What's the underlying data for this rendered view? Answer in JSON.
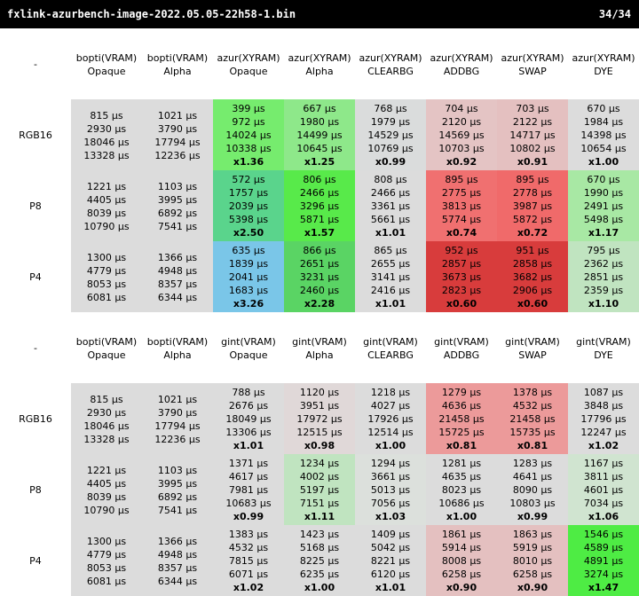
{
  "title": "fxlink-azurbench-image-2022.05.05-22h58-1.bin",
  "page": "34/34",
  "tables": [
    {
      "corner": "-",
      "headers": [
        [
          "bopti(VRAM)",
          "Opaque"
        ],
        [
          "bopti(VRAM)",
          "Alpha"
        ],
        [
          "azur(XYRAM)",
          "Opaque"
        ],
        [
          "azur(XYRAM)",
          "Alpha"
        ],
        [
          "azur(XYRAM)",
          "CLEARBG"
        ],
        [
          "azur(XYRAM)",
          "ADDBG"
        ],
        [
          "azur(XYRAM)",
          "SWAP"
        ],
        [
          "azur(XYRAM)",
          "DYE"
        ]
      ],
      "rows": [
        {
          "label": "RGB16",
          "cells": [
            {
              "lines": [
                "815 µs",
                "2930 µs",
                "18046 µs",
                "13328 µs"
              ],
              "ratio": "",
              "color": "#dcdcdc"
            },
            {
              "lines": [
                "1021 µs",
                "3790 µs",
                "17794 µs",
                "12236 µs"
              ],
              "ratio": "",
              "color": "#dcdcdc"
            },
            {
              "lines": [
                "399 µs",
                "972 µs",
                "14024 µs",
                "10338 µs"
              ],
              "ratio": "x1.36",
              "color": "#76ec6e"
            },
            {
              "lines": [
                "667 µs",
                "1980 µs",
                "14499 µs",
                "10645 µs"
              ],
              "ratio": "x1.25",
              "color": "#8ee88a"
            },
            {
              "lines": [
                "768 µs",
                "1979 µs",
                "14529 µs",
                "10769 µs"
              ],
              "ratio": "x0.99",
              "color": "#dadcdc"
            },
            {
              "lines": [
                "704 µs",
                "2120 µs",
                "14569 µs",
                "10703 µs"
              ],
              "ratio": "x0.92",
              "color": "#e4c4c4"
            },
            {
              "lines": [
                "703 µs",
                "2122 µs",
                "14717 µs",
                "10802 µs"
              ],
              "ratio": "x0.91",
              "color": "#e4c0c0"
            },
            {
              "lines": [
                "670 µs",
                "1984 µs",
                "14398 µs",
                "10654 µs"
              ],
              "ratio": "x1.00",
              "color": "#dcdcdc"
            }
          ]
        },
        {
          "label": "P8",
          "cells": [
            {
              "lines": [
                "1221 µs",
                "4405 µs",
                "8039 µs",
                "10790 µs"
              ],
              "ratio": "",
              "color": "#dcdcdc"
            },
            {
              "lines": [
                "1103 µs",
                "3995 µs",
                "6892 µs",
                "7541 µs"
              ],
              "ratio": "",
              "color": "#dcdcdc"
            },
            {
              "lines": [
                "572 µs",
                "1757 µs",
                "2039 µs",
                "5398 µs"
              ],
              "ratio": "x2.50",
              "color": "#5ad48c"
            },
            {
              "lines": [
                "806 µs",
                "2466 µs",
                "3296 µs",
                "5871 µs"
              ],
              "ratio": "x1.57",
              "color": "#58ea4a"
            },
            {
              "lines": [
                "808 µs",
                "2466 µs",
                "3361 µs",
                "5661 µs"
              ],
              "ratio": "x1.01",
              "color": "#dcdcdc"
            },
            {
              "lines": [
                "895 µs",
                "2775 µs",
                "3813 µs",
                "5774 µs"
              ],
              "ratio": "x0.74",
              "color": "#f07070"
            },
            {
              "lines": [
                "895 µs",
                "2778 µs",
                "3987 µs",
                "5872 µs"
              ],
              "ratio": "x0.72",
              "color": "#f06a6a"
            },
            {
              "lines": [
                "670 µs",
                "1990 µs",
                "2491 µs",
                "5498 µs"
              ],
              "ratio": "x1.17",
              "color": "#a8e8a4"
            }
          ]
        },
        {
          "label": "P4",
          "cells": [
            {
              "lines": [
                "1300 µs",
                "4779 µs",
                "8053 µs",
                "6081 µs"
              ],
              "ratio": "",
              "color": "#dcdcdc"
            },
            {
              "lines": [
                "1366 µs",
                "4948 µs",
                "8357 µs",
                "6344 µs"
              ],
              "ratio": "",
              "color": "#dcdcdc"
            },
            {
              "lines": [
                "635 µs",
                "1839 µs",
                "2041 µs",
                "1683 µs"
              ],
              "ratio": "x3.26",
              "color": "#7ac6e8"
            },
            {
              "lines": [
                "866 µs",
                "2651 µs",
                "3231 µs",
                "2460 µs"
              ],
              "ratio": "x2.28",
              "color": "#5ad464"
            },
            {
              "lines": [
                "865 µs",
                "2655 µs",
                "3141 µs",
                "2416 µs"
              ],
              "ratio": "x1.01",
              "color": "#dcdcdc"
            },
            {
              "lines": [
                "952 µs",
                "2857 µs",
                "3673 µs",
                "2823 µs"
              ],
              "ratio": "x0.60",
              "color": "#d83c3c"
            },
            {
              "lines": [
                "951 µs",
                "2858 µs",
                "3682 µs",
                "2906 µs"
              ],
              "ratio": "x0.60",
              "color": "#d83c3c"
            },
            {
              "lines": [
                "795 µs",
                "2362 µs",
                "2851 µs",
                "2359 µs"
              ],
              "ratio": "x1.10",
              "color": "#c0e4c0"
            }
          ]
        }
      ]
    },
    {
      "corner": "-",
      "headers": [
        [
          "bopti(VRAM)",
          "Opaque"
        ],
        [
          "bopti(VRAM)",
          "Alpha"
        ],
        [
          "gint(VRAM)",
          "Opaque"
        ],
        [
          "gint(VRAM)",
          "Alpha"
        ],
        [
          "gint(VRAM)",
          "CLEARBG"
        ],
        [
          "gint(VRAM)",
          "ADDBG"
        ],
        [
          "gint(VRAM)",
          "SWAP"
        ],
        [
          "gint(VRAM)",
          "DYE"
        ]
      ],
      "rows": [
        {
          "label": "RGB16",
          "cells": [
            {
              "lines": [
                "815 µs",
                "2930 µs",
                "18046 µs",
                "13328 µs"
              ],
              "ratio": "",
              "color": "#dcdcdc"
            },
            {
              "lines": [
                "1021 µs",
                "3790 µs",
                "17794 µs",
                "12236 µs"
              ],
              "ratio": "",
              "color": "#dcdcdc"
            },
            {
              "lines": [
                "788 µs",
                "2676 µs",
                "18049 µs",
                "13306 µs"
              ],
              "ratio": "x1.01",
              "color": "#dcdcdc"
            },
            {
              "lines": [
                "1120 µs",
                "3951 µs",
                "17972 µs",
                "12515 µs"
              ],
              "ratio": "x0.98",
              "color": "#e0d8d8"
            },
            {
              "lines": [
                "1218 µs",
                "4027 µs",
                "17926 µs",
                "12514 µs"
              ],
              "ratio": "x1.00",
              "color": "#dcdcdc"
            },
            {
              "lines": [
                "1279 µs",
                "4636 µs",
                "21458 µs",
                "15725 µs"
              ],
              "ratio": "x0.81",
              "color": "#ec9a9a"
            },
            {
              "lines": [
                "1378 µs",
                "4532 µs",
                "21458 µs",
                "15735 µs"
              ],
              "ratio": "x0.81",
              "color": "#ec9a9a"
            },
            {
              "lines": [
                "1087 µs",
                "3848 µs",
                "17796 µs",
                "12247 µs"
              ],
              "ratio": "x1.02",
              "color": "#dcdcdc"
            }
          ]
        },
        {
          "label": "P8",
          "cells": [
            {
              "lines": [
                "1221 µs",
                "4405 µs",
                "8039 µs",
                "10790 µs"
              ],
              "ratio": "",
              "color": "#dcdcdc"
            },
            {
              "lines": [
                "1103 µs",
                "3995 µs",
                "6892 µs",
                "7541 µs"
              ],
              "ratio": "",
              "color": "#dcdcdc"
            },
            {
              "lines": [
                "1371 µs",
                "4617 µs",
                "7981 µs",
                "10683 µs"
              ],
              "ratio": "x0.99",
              "color": "#dcdcdc"
            },
            {
              "lines": [
                "1234 µs",
                "4002 µs",
                "5197 µs",
                "7151 µs"
              ],
              "ratio": "x1.11",
              "color": "#c0e4c0"
            },
            {
              "lines": [
                "1294 µs",
                "3661 µs",
                "5013 µs",
                "7056 µs"
              ],
              "ratio": "x1.03",
              "color": "#dce0dc"
            },
            {
              "lines": [
                "1281 µs",
                "4635 µs",
                "8023 µs",
                "10686 µs"
              ],
              "ratio": "x1.00",
              "color": "#dcdcdc"
            },
            {
              "lines": [
                "1283 µs",
                "4641 µs",
                "8090 µs",
                "10803 µs"
              ],
              "ratio": "x0.99",
              "color": "#dcdcdc"
            },
            {
              "lines": [
                "1167 µs",
                "3811 µs",
                "4601 µs",
                "7034 µs"
              ],
              "ratio": "x1.06",
              "color": "#d0e4d0"
            }
          ]
        },
        {
          "label": "P4",
          "cells": [
            {
              "lines": [
                "1300 µs",
                "4779 µs",
                "8053 µs",
                "6081 µs"
              ],
              "ratio": "",
              "color": "#dcdcdc"
            },
            {
              "lines": [
                "1366 µs",
                "4948 µs",
                "8357 µs",
                "6344 µs"
              ],
              "ratio": "",
              "color": "#dcdcdc"
            },
            {
              "lines": [
                "1383 µs",
                "4532 µs",
                "7815 µs",
                "6071 µs"
              ],
              "ratio": "x1.02",
              "color": "#dcdcdc"
            },
            {
              "lines": [
                "1423 µs",
                "5168 µs",
                "8225 µs",
                "6235 µs"
              ],
              "ratio": "x1.00",
              "color": "#dcdcdc"
            },
            {
              "lines": [
                "1409 µs",
                "5042 µs",
                "8221 µs",
                "6120 µs"
              ],
              "ratio": "x1.01",
              "color": "#dcdcdc"
            },
            {
              "lines": [
                "1861 µs",
                "5914 µs",
                "8008 µs",
                "6258 µs"
              ],
              "ratio": "x0.90",
              "color": "#e4c0c0"
            },
            {
              "lines": [
                "1863 µs",
                "5919 µs",
                "8010 µs",
                "6258 µs"
              ],
              "ratio": "x0.90",
              "color": "#e4c0c0"
            },
            {
              "lines": [
                "1546 µs",
                "4589 µs",
                "4891 µs",
                "3274 µs"
              ],
              "ratio": "x1.47",
              "color": "#4eec44"
            }
          ]
        }
      ]
    }
  ]
}
